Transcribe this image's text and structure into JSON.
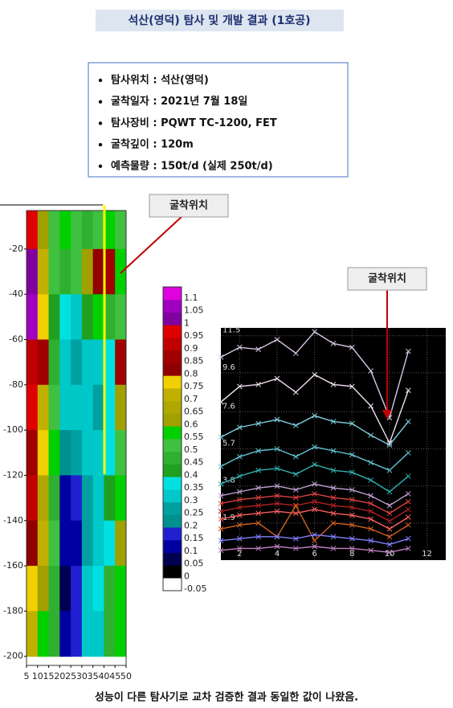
{
  "title": "석산(영덕) 탐사 및 개발 결과 (1호공)",
  "info": [
    "탐사위치 : 석산(영덕)",
    "굴착일자 : 2021년 7월 18일",
    "탐사장비 : PQWT TC-1200, FET",
    "굴착깊이 : 120m",
    "예측물량 : 150t/d  (실제 250t/d)"
  ],
  "callouts": [
    "굴착위치",
    "굴착위치"
  ],
  "caption": "성능이 다른 탐사기로 교차 검증한 결과 동일한 값이 나왔음.",
  "chart_data": [
    {
      "type": "heatmap",
      "x": [
        7.5,
        12.5,
        17.5,
        22.5,
        27.5,
        32.5,
        37.5,
        42.5,
        47.5
      ],
      "y": [
        -10,
        -30,
        -50,
        -70,
        -90,
        -110,
        -130,
        -150,
        -170,
        -190
      ],
      "values": [
        [
          0.95,
          0.6,
          0.5,
          0.55,
          0.5,
          0.45,
          0.5,
          0.55,
          0.5
        ],
        [
          1.0,
          0.7,
          0.5,
          0.45,
          0.5,
          0.6,
          0.8,
          0.85,
          0.55
        ],
        [
          1.05,
          0.75,
          0.4,
          0.35,
          0.3,
          0.4,
          0.55,
          0.45,
          0.5
        ],
        [
          0.9,
          0.85,
          0.45,
          0.3,
          0.25,
          0.3,
          0.3,
          0.35,
          0.85
        ],
        [
          0.95,
          0.7,
          0.5,
          0.3,
          0.3,
          0.3,
          0.25,
          0.35,
          0.6
        ],
        [
          0.85,
          0.75,
          0.55,
          0.2,
          0.25,
          0.3,
          0.3,
          0.35,
          0.5
        ],
        [
          0.9,
          0.65,
          0.45,
          0.1,
          0.15,
          0.25,
          0.3,
          0.4,
          0.55
        ],
        [
          0.8,
          0.7,
          0.5,
          0.1,
          0.1,
          0.25,
          0.3,
          0.35,
          0.6
        ],
        [
          0.75,
          0.6,
          0.45,
          0.05,
          0.15,
          0.3,
          0.35,
          0.45,
          0.55
        ],
        [
          0.7,
          0.55,
          0.45,
          0.1,
          0.15,
          0.3,
          0.3,
          0.45,
          0.55
        ]
      ],
      "xlim": [
        5,
        50
      ],
      "xticks": [
        5,
        10,
        15,
        20,
        25,
        30,
        35,
        40,
        45,
        50
      ],
      "ylim": [
        -204,
        -3
      ],
      "yticks": [
        -20,
        -40,
        -60,
        -80,
        -100,
        -120,
        -140,
        -160,
        -180,
        -200
      ],
      "levels": [
        -0.05,
        0,
        0.05,
        0.1,
        0.15,
        0.2,
        0.25,
        0.3,
        0.35,
        0.4,
        0.45,
        0.5,
        0.55,
        0.6,
        0.65,
        0.7,
        0.75,
        0.8,
        0.85,
        0.9,
        0.95,
        1,
        1.05,
        1.1
      ],
      "colors": [
        "#000000",
        "#000050",
        "#0000a0",
        "#2020d0",
        "#009090",
        "#00a0a0",
        "#00c8c8",
        "#00e0e0",
        "#20a020",
        "#30b030",
        "#40c040",
        "#00d000",
        "#a0a000",
        "#b0a800",
        "#c0b000",
        "#f0d000",
        "#900000",
        "#a00000",
        "#c00000",
        "#e00000",
        "#8000a0",
        "#a000c0",
        "#e000e0"
      ]
    },
    {
      "type": "line",
      "x": [
        1,
        2,
        3,
        4,
        5,
        6,
        7,
        8,
        9,
        10,
        11
      ],
      "xlim": [
        1,
        13
      ],
      "xticks": [
        2,
        4,
        6,
        8,
        10,
        12
      ],
      "ylim": [
        0,
        11.9
      ],
      "yticks": [
        1.9,
        3.8,
        5.7,
        7.6,
        9.6,
        11.5
      ],
      "grid": true,
      "series": [
        {
          "color": "#d8c8e8",
          "values": [
            10.4,
            10.9,
            10.8,
            11.3,
            10.6,
            11.7,
            11.1,
            10.9,
            9.7,
            7.3,
            10.7
          ]
        },
        {
          "color": "#f0e0f0",
          "values": [
            8.1,
            8.9,
            9.0,
            9.3,
            8.6,
            9.5,
            9.0,
            8.9,
            7.9,
            6.0,
            8.7
          ]
        },
        {
          "color": "#80d0e0",
          "values": [
            6.3,
            6.8,
            7.0,
            7.2,
            6.9,
            7.4,
            7.1,
            7.0,
            6.4,
            5.9,
            7.1
          ]
        },
        {
          "color": "#60c0d0",
          "values": [
            4.8,
            5.3,
            5.6,
            5.7,
            5.3,
            5.8,
            5.6,
            5.4,
            5.0,
            4.6,
            5.5
          ]
        },
        {
          "color": "#30b0b0",
          "values": [
            3.9,
            4.3,
            4.6,
            4.7,
            4.4,
            4.9,
            4.6,
            4.5,
            4.1,
            3.5,
            4.3
          ]
        },
        {
          "color": "#c0a0d0",
          "values": [
            3.3,
            3.5,
            3.7,
            3.8,
            3.6,
            3.9,
            3.7,
            3.6,
            3.3,
            2.8,
            3.4
          ]
        },
        {
          "color": "#e04040",
          "values": [
            2.9,
            3.1,
            3.2,
            3.3,
            3.2,
            3.4,
            3.2,
            3.1,
            2.9,
            2.4,
            3.0
          ]
        },
        {
          "color": "#b02020",
          "values": [
            2.5,
            2.7,
            2.8,
            2.9,
            2.8,
            3.0,
            2.8,
            2.7,
            2.5,
            2.0,
            2.6
          ]
        },
        {
          "color": "#ff6060",
          "values": [
            2.1,
            2.3,
            2.4,
            2.5,
            2.4,
            2.6,
            2.4,
            2.3,
            2.1,
            1.6,
            2.2
          ]
        },
        {
          "color": "#d06020",
          "values": [
            1.6,
            1.8,
            1.9,
            1.2,
            2.8,
            1.0,
            1.9,
            1.8,
            1.6,
            1.2,
            1.8
          ]
        },
        {
          "color": "#8080ff",
          "values": [
            1.0,
            1.1,
            1.2,
            1.2,
            1.1,
            1.3,
            1.2,
            1.1,
            1.0,
            0.8,
            1.1
          ]
        },
        {
          "color": "#c080c0",
          "values": [
            0.5,
            0.6,
            0.6,
            0.7,
            0.6,
            0.7,
            0.6,
            0.6,
            0.5,
            0.4,
            0.6
          ]
        }
      ]
    }
  ]
}
